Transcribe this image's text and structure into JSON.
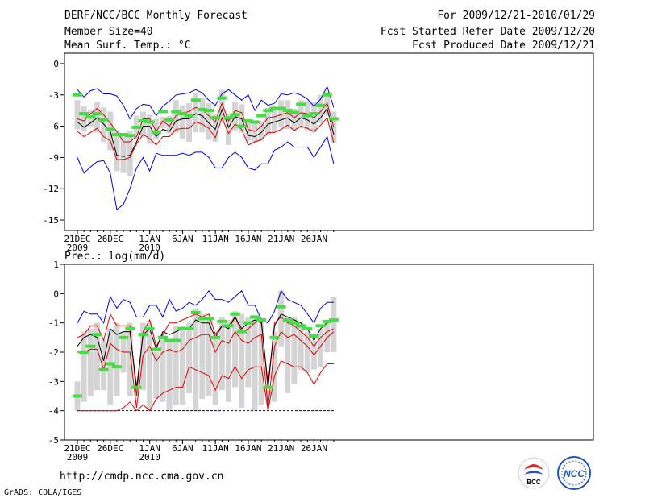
{
  "header": {
    "title": "DERF/NCC/BCC Monthly Forecast",
    "member_size": "Member Size=40",
    "variable": "Mean Surf. Temp.: °C",
    "forecast_period": "For 2009/12/21-2010/01/29",
    "started_refer": "Fcst Started Refer Date 2009/12/20",
    "produced": "Fcst Produced Date 2009/12/21"
  },
  "precip_label": "Prec.: log(mm/d)",
  "footer": {
    "url": "http://cmdp.ncc.cma.gov.cn",
    "grads_credit": "GrADS: COLA/IGES",
    "logo_left_text": "BCC",
    "logo_right_text": "NCC"
  },
  "x_axis": {
    "ticks": [
      {
        "day": 0,
        "label": "21DEC",
        "sub": "2009"
      },
      {
        "day": 5,
        "label": "26DEC",
        "sub": ""
      },
      {
        "day": 11,
        "label": "1JAN",
        "sub": "2010"
      },
      {
        "day": 16,
        "label": "6JAN",
        "sub": ""
      },
      {
        "day": 21,
        "label": "11JAN",
        "sub": ""
      },
      {
        "day": 26,
        "label": "16JAN",
        "sub": ""
      },
      {
        "day": 31,
        "label": "21JAN",
        "sub": ""
      },
      {
        "day": 36,
        "label": "26JAN",
        "sub": ""
      }
    ]
  },
  "colors": {
    "envelope": "#0000dd",
    "spread": "#dd0000",
    "mean": "#000000",
    "box": "#d4d4d4",
    "median": "#44dd44"
  },
  "chart_data": [
    {
      "type": "line",
      "name": "temperature",
      "ylim": [
        -16,
        1
      ],
      "yticks": [
        0,
        -3,
        -6,
        -9,
        -12,
        -15
      ],
      "x": [
        0,
        1,
        2,
        3,
        4,
        5,
        6,
        7,
        8,
        9,
        10,
        11,
        12,
        13,
        14,
        15,
        16,
        17,
        18,
        19,
        20,
        21,
        22,
        23,
        24,
        25,
        26,
        27,
        28,
        29,
        30,
        31,
        32,
        33,
        34,
        35,
        36,
        37,
        38,
        39
      ],
      "series": [
        {
          "name": "max",
          "style": "envelope",
          "values": [
            -2.5,
            -3.2,
            -2.6,
            -2.4,
            -2.9,
            -2.9,
            -3.1,
            -4.0,
            -5.3,
            -4.3,
            -3.9,
            -4.0,
            -5.0,
            -4.1,
            -3.6,
            -3.0,
            -2.9,
            -2.8,
            -2.5,
            -2.8,
            -3.5,
            -4.0,
            -2.9,
            -2.5,
            -3.0,
            -3.5,
            -3.0,
            -4.5,
            -3.5,
            -4.0,
            -3.8,
            -2.9,
            -3.0,
            -2.8,
            -3.0,
            -3.4,
            -4.1,
            -3.4,
            -2.2,
            -4.2
          ]
        },
        {
          "name": "upper",
          "style": "spread",
          "values": [
            -5.3,
            -5.5,
            -4.8,
            -4.3,
            -4.9,
            -5.7,
            -6.5,
            -7.5,
            -7.5,
            -7.0,
            -5.3,
            -5.3,
            -6.5,
            -5.5,
            -6.0,
            -5.0,
            -4.7,
            -4.6,
            -4.2,
            -4.4,
            -5.0,
            -5.6,
            -3.8,
            -5.5,
            -4.5,
            -4.7,
            -6.3,
            -6.5,
            -6.0,
            -5.2,
            -5.1,
            -4.9,
            -4.7,
            -5.2,
            -4.7,
            -4.8,
            -5.2,
            -4.6,
            -3.8,
            -6.1
          ]
        },
        {
          "name": "mean",
          "style": "mean",
          "values": [
            -5.6,
            -6.1,
            -5.7,
            -5.2,
            -5.8,
            -6.5,
            -8.8,
            -8.9,
            -8.8,
            -7.5,
            -6.0,
            -6.0,
            -7.0,
            -6.3,
            -6.5,
            -5.5,
            -5.3,
            -5.3,
            -4.8,
            -5.0,
            -5.7,
            -6.3,
            -4.4,
            -6.1,
            -5.1,
            -5.3,
            -6.9,
            -7.0,
            -6.6,
            -5.8,
            -5.6,
            -5.4,
            -5.2,
            -5.7,
            -5.2,
            -5.4,
            -5.8,
            -5.2,
            -4.3,
            -6.8
          ]
        },
        {
          "name": "lower",
          "style": "spread",
          "values": [
            -6.5,
            -7.0,
            -6.6,
            -6.2,
            -7.0,
            -7.4,
            -9.2,
            -9.2,
            -9.0,
            -7.7,
            -6.8,
            -7.2,
            -7.8,
            -7.0,
            -7.0,
            -6.3,
            -6.2,
            -6.2,
            -5.6,
            -5.8,
            -6.2,
            -7.1,
            -5.2,
            -6.7,
            -5.8,
            -6.3,
            -7.8,
            -7.5,
            -7.3,
            -6.6,
            -6.6,
            -6.3,
            -5.9,
            -6.4,
            -6.0,
            -6.2,
            -6.5,
            -5.9,
            -5.2,
            -7.6
          ]
        },
        {
          "name": "min",
          "style": "envelope",
          "values": [
            -9.0,
            -10.5,
            -9.9,
            -9.4,
            -9.3,
            -10.5,
            -14.0,
            -13.5,
            -12.0,
            -10.0,
            -9.0,
            -10.3,
            -8.6,
            -8.8,
            -8.8,
            -8.8,
            -8.6,
            -8.8,
            -8.5,
            -8.5,
            -9.0,
            -10.0,
            -10.0,
            -9.0,
            -8.5,
            -9.0,
            -10.0,
            -10.2,
            -9.6,
            -9.6,
            -8.3,
            -8.0,
            -7.5,
            -8.0,
            -8.0,
            -8.0,
            -9.0,
            -8.0,
            -7.0,
            -9.6
          ]
        }
      ],
      "boxes": {
        "top": [
          -3.5,
          -4.1,
          -4.5,
          -3.7,
          -4.2,
          -4.6,
          -6.5,
          -6.7,
          -6.5,
          -5.0,
          -4.6,
          -4.9,
          -5.3,
          -5.1,
          -5.0,
          -3.5,
          -4.0,
          -3.8,
          -2.8,
          -3.3,
          -3.8,
          -4.8,
          -2.5,
          -4.8,
          -3.7,
          -3.9,
          -5.4,
          -5.7,
          -5.5,
          -4.2,
          -4.1,
          -3.5,
          -3.5,
          -4.3,
          -3.5,
          -3.6,
          -3.7,
          -3.0,
          -2.7,
          -4.6
        ],
        "bottom": [
          -6.3,
          -6.5,
          -6.1,
          -6.6,
          -7.5,
          -8.3,
          -10.3,
          -10.5,
          -10.8,
          -7.2,
          -7.0,
          -7.7,
          -7.2,
          -6.2,
          -6.7,
          -6.6,
          -7.2,
          -7.5,
          -6.6,
          -6.6,
          -7.3,
          -7.5,
          -5.6,
          -7.8,
          -6.4,
          -6.6,
          -7.4,
          -7.6,
          -7.4,
          -6.8,
          -6.6,
          -6.1,
          -6.3,
          -6.4,
          -6.2,
          -6.4,
          -6.6,
          -5.7,
          -5.0,
          -7.6
        ],
        "median": [
          -3.0,
          -4.8,
          -5.1,
          -4.8,
          -5.4,
          -6.3,
          -6.8,
          -6.8,
          -6.9,
          -6.1,
          -5.5,
          -5.6,
          -6.6,
          -4.6,
          -5.4,
          -4.6,
          -4.8,
          -5.0,
          -3.5,
          -4.4,
          -4.5,
          -5.2,
          -3.3,
          -5.2,
          -4.9,
          -6.0,
          -5.5,
          -5.6,
          -5.0,
          -4.5,
          -4.3,
          -4.3,
          -4.5,
          -4.7,
          -3.9,
          -5.0,
          -4.8,
          -4.0,
          -3.0,
          -5.3
        ]
      }
    },
    {
      "type": "line",
      "name": "precipitation",
      "ylim": [
        -5,
        1
      ],
      "yticks": [
        1,
        0,
        -1,
        -2,
        -3,
        -4,
        -5
      ],
      "x": [
        0,
        1,
        2,
        3,
        4,
        5,
        6,
        7,
        8,
        9,
        10,
        11,
        12,
        13,
        14,
        15,
        16,
        17,
        18,
        19,
        20,
        21,
        22,
        23,
        24,
        25,
        26,
        27,
        28,
        29,
        30,
        31,
        32,
        33,
        34,
        35,
        36,
        37,
        38,
        39
      ],
      "series": [
        {
          "name": "max",
          "style": "envelope",
          "values": [
            -1.0,
            -0.6,
            -0.7,
            -0.7,
            -1.0,
            -0.1,
            -0.5,
            -0.2,
            -0.3,
            -0.8,
            -0.8,
            -0.4,
            -0.4,
            -0.8,
            -0.2,
            -0.6,
            -0.5,
            -0.3,
            -0.4,
            -0.2,
            0.1,
            -0.2,
            -0.2,
            -0.3,
            -0.1,
            0.1,
            -0.4,
            -0.4,
            -0.9,
            -1.0,
            -0.6,
            0.1,
            -0.2,
            -0.3,
            -0.4,
            -0.7,
            -1.0,
            -0.5,
            -0.3,
            -0.3
          ]
        },
        {
          "name": "upper",
          "style": "spread",
          "values": [
            -1.5,
            -1.4,
            -1.1,
            -1.1,
            -1.6,
            -0.7,
            -1.1,
            -1.1,
            -1.1,
            -3.5,
            -1.3,
            -0.9,
            -1.8,
            -1.4,
            -1.0,
            -1.0,
            -0.9,
            -0.8,
            -0.7,
            -0.8,
            -0.7,
            -1.4,
            -1.1,
            -1.1,
            -0.8,
            -1.3,
            -1.2,
            -1.0,
            -0.9,
            -3.3,
            -1.0,
            -0.8,
            -1.0,
            -1.1,
            -1.3,
            -1.5,
            -1.8,
            -1.5,
            -1.3,
            -1.2
          ]
        },
        {
          "name": "mean",
          "style": "mean",
          "values": [
            -1.8,
            -1.5,
            -1.4,
            -1.5,
            -2.3,
            -1.2,
            -1.4,
            -1.3,
            -1.3,
            -3.2,
            -1.4,
            -1.2,
            -1.9,
            -1.3,
            -1.4,
            -1.3,
            -1.2,
            -1.2,
            -0.9,
            -1.0,
            -1.0,
            -1.5,
            -1.1,
            -1.2,
            -0.8,
            -1.2,
            -1.0,
            -0.9,
            -1.0,
            -3.1,
            -1.1,
            -0.7,
            -0.8,
            -0.9,
            -1.0,
            -1.2,
            -1.6,
            -1.2,
            -1.0,
            -0.9
          ]
        },
        {
          "name": "lower",
          "style": "spread",
          "values": [
            -2.0,
            -2.0,
            -1.9,
            -1.9,
            -2.6,
            -1.7,
            -1.9,
            -2.0,
            -2.0,
            -3.9,
            -2.1,
            -1.8,
            -2.3,
            -2.0,
            -1.9,
            -2.0,
            -1.9,
            -1.6,
            -1.5,
            -1.4,
            -1.4,
            -2.0,
            -1.6,
            -1.7,
            -1.3,
            -1.6,
            -1.7,
            -1.5,
            -1.4,
            -3.9,
            -1.8,
            -1.3,
            -1.5,
            -1.4,
            -1.6,
            -1.8,
            -2.1,
            -1.8,
            -1.5,
            -1.3
          ]
        },
        {
          "name": "min",
          "style": "floor",
          "values": [
            -4.0,
            -4.0,
            -4.0,
            -4.0,
            -4.0,
            -4.0,
            -4.0,
            -3.9,
            -3.7,
            -4.0,
            -3.8,
            -4.0,
            -3.6,
            -3.4,
            -3.3,
            -3.2,
            -3.2,
            -2.5,
            -2.6,
            -2.7,
            -2.8,
            -3.3,
            -2.8,
            -2.9,
            -2.5,
            -2.9,
            -2.6,
            -2.5,
            -2.5,
            -4.0,
            -2.8,
            -2.3,
            -2.4,
            -2.5,
            -2.5,
            -2.7,
            -3.1,
            -2.7,
            -2.4,
            -2.4
          ]
        }
      ],
      "boxes": {
        "top": [
          -3.0,
          -1.3,
          -1.2,
          -1.0,
          -1.6,
          -1.2,
          -1.0,
          -1.3,
          -1.0,
          -3.2,
          -1.0,
          -1.0,
          -2.0,
          -1.4,
          -1.6,
          -1.1,
          -1.1,
          -1.0,
          -0.5,
          -0.7,
          -0.8,
          -1.3,
          -0.8,
          -0.9,
          -0.6,
          -0.7,
          -0.8,
          -0.8,
          -0.9,
          -3.3,
          -1.3,
          0.1,
          -0.8,
          -0.8,
          -1.0,
          -1.3,
          -1.6,
          -1.2,
          -0.9,
          -0.1
        ],
        "bottom": [
          -4.0,
          -3.7,
          -3.5,
          -3.3,
          -3.3,
          -3.8,
          -3.5,
          -2.7,
          -3.5,
          -3.5,
          -3.3,
          -4.0,
          -3.6,
          -3.7,
          -4.0,
          -3.8,
          -3.8,
          -3.4,
          -4.0,
          -3.6,
          -3.5,
          -3.8,
          -3.3,
          -3.7,
          -3.2,
          -3.9,
          -3.2,
          -4.0,
          -3.8,
          -3.5,
          -3.7,
          -1.8,
          -3.4,
          -3.1,
          -2.6,
          -2.7,
          -2.6,
          -2.5,
          -2.0,
          -2.0
        ],
        "median": [
          -3.5,
          -2.0,
          -1.8,
          -1.4,
          -2.6,
          -2.4,
          -2.5,
          -1.5,
          -1.2,
          -3.2,
          -1.4,
          -1.2,
          -1.9,
          -1.5,
          -1.6,
          -1.6,
          -1.2,
          -1.2,
          -0.65,
          -0.85,
          -0.85,
          -1.5,
          -0.95,
          -1.1,
          -0.7,
          -1.3,
          -1.0,
          -0.8,
          -0.9,
          -3.2,
          -1.5,
          -0.45,
          -0.9,
          -1.0,
          -1.1,
          -1.2,
          -1.45,
          -1.1,
          -0.95,
          -0.9
        ]
      }
    }
  ]
}
